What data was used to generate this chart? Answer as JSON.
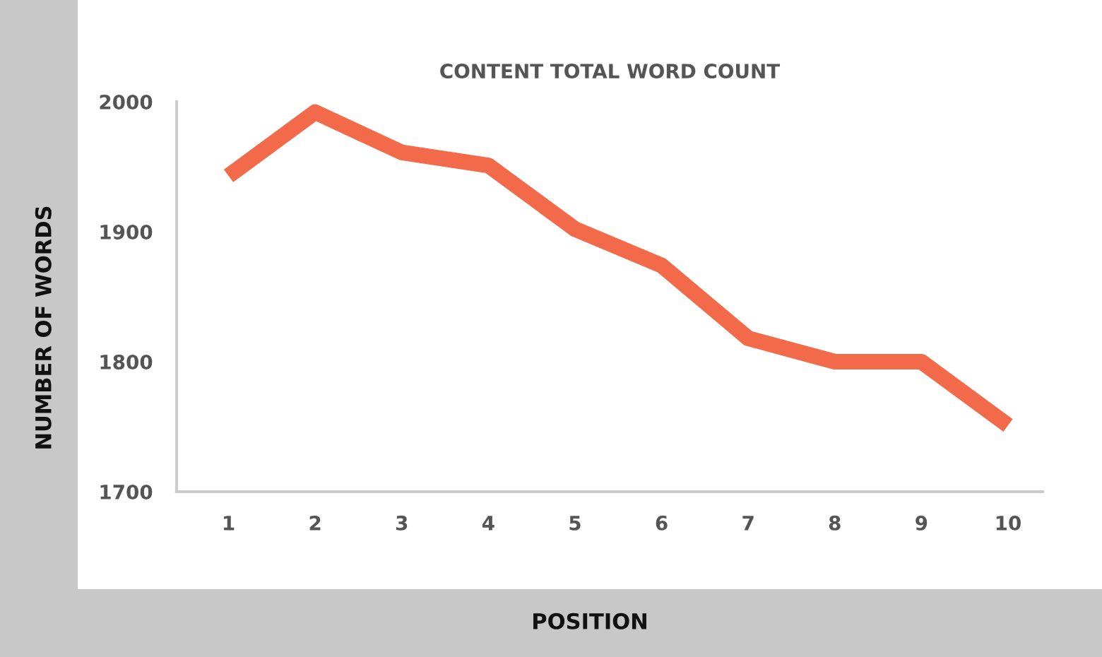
{
  "chart_data": {
    "type": "line",
    "title": "CONTENT TOTAL WORD COUNT",
    "xlabel": "POSITION",
    "ylabel": "NUMBER OF WORDS",
    "categories": [
      "1",
      "2",
      "3",
      "4",
      "5",
      "6",
      "7",
      "8",
      "9",
      "10"
    ],
    "series": [
      {
        "color": "#f36a4a",
        "values": [
          1943,
          1992,
          1961,
          1951,
          1902,
          1874,
          1818,
          1800,
          1800,
          1751
        ]
      }
    ],
    "ylim": [
      1700,
      2000
    ],
    "yticks": [
      1700,
      1800,
      1900,
      2000
    ],
    "grid": false,
    "legend": false,
    "marker": "none",
    "line_style": "solid"
  }
}
